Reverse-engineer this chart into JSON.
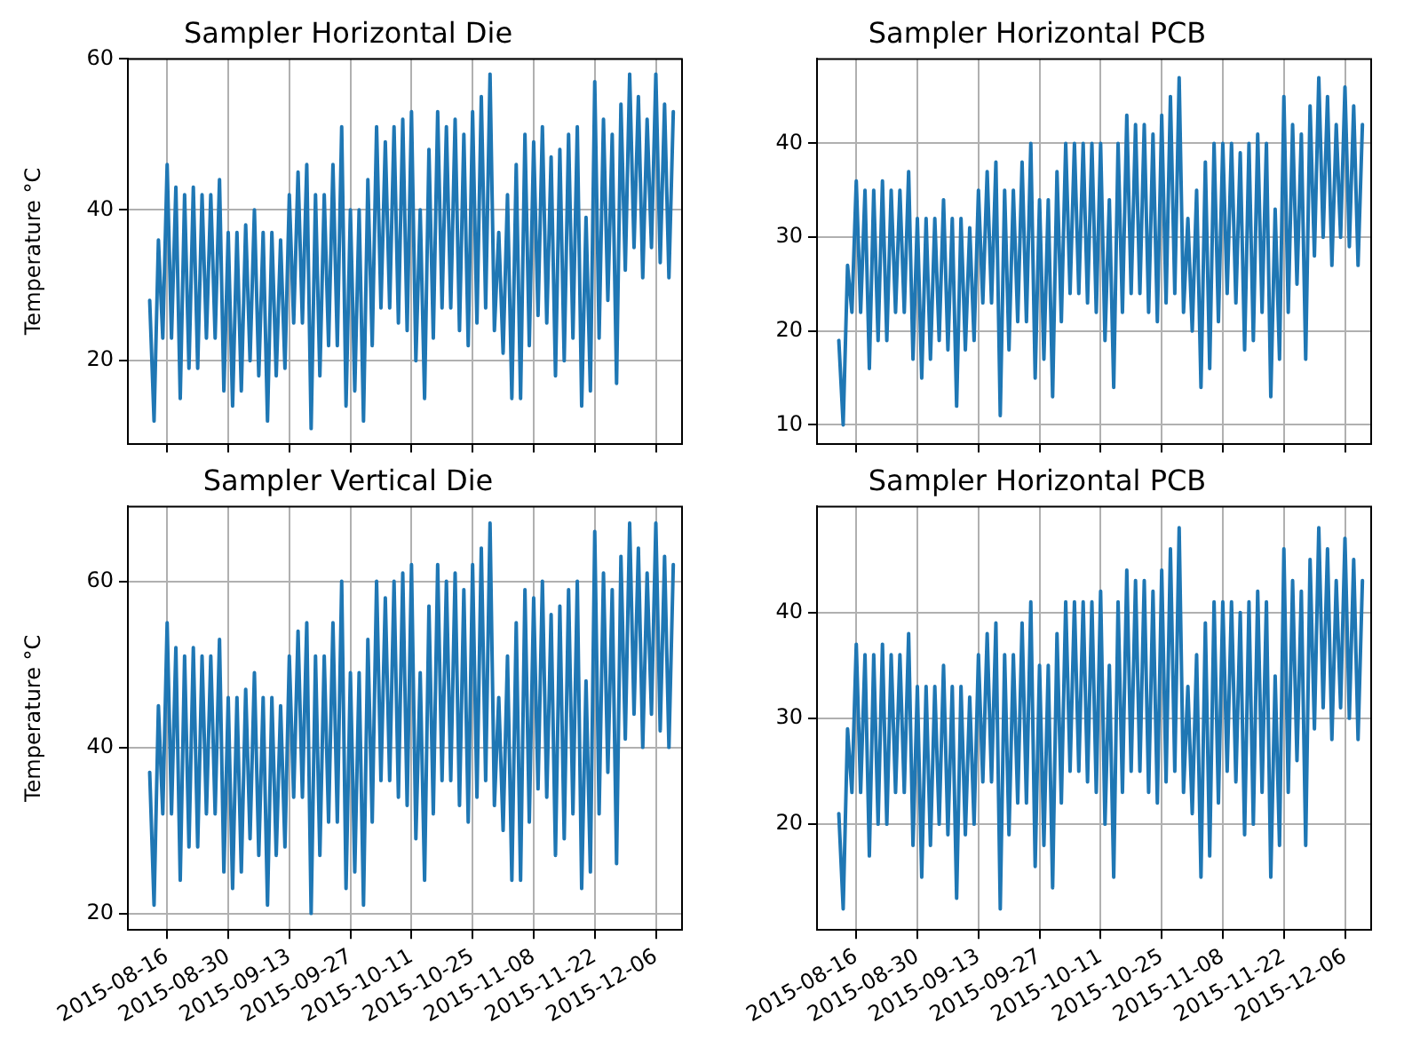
{
  "chart_data": [
    {
      "type": "line",
      "title": "Sampler Horizontal Die",
      "ylabel": "Temperature °C",
      "xlim": [
        "2015-08-07",
        "2015-12-12"
      ],
      "xticks": [
        "2015-08-16",
        "2015-08-30",
        "2015-09-13",
        "2015-09-27",
        "2015-10-11",
        "2015-10-25",
        "2015-11-08",
        "2015-11-22",
        "2015-12-06"
      ],
      "ylim": [
        9,
        60
      ],
      "yticks": [
        20,
        40,
        60
      ],
      "grid": true,
      "tick_labels": "y",
      "marker": "none",
      "line_style": "solid",
      "x": [
        "2015-08-12",
        "2015-08-13",
        "2015-08-14",
        "2015-08-15",
        "2015-08-16",
        "2015-08-17",
        "2015-08-18",
        "2015-08-19",
        "2015-08-20",
        "2015-08-21",
        "2015-08-22",
        "2015-08-23",
        "2015-08-24",
        "2015-08-25",
        "2015-08-26",
        "2015-08-27",
        "2015-08-28",
        "2015-08-29",
        "2015-08-30",
        "2015-08-31",
        "2015-09-01",
        "2015-09-02",
        "2015-09-03",
        "2015-09-04",
        "2015-09-05",
        "2015-09-06",
        "2015-09-07",
        "2015-09-08",
        "2015-09-09",
        "2015-09-10",
        "2015-09-11",
        "2015-09-12",
        "2015-09-13",
        "2015-09-14",
        "2015-09-15",
        "2015-09-16",
        "2015-09-17",
        "2015-09-18",
        "2015-09-19",
        "2015-09-20",
        "2015-09-21",
        "2015-09-22",
        "2015-09-23",
        "2015-09-24",
        "2015-09-25",
        "2015-09-26",
        "2015-09-27",
        "2015-09-28",
        "2015-09-29",
        "2015-09-30",
        "2015-10-01",
        "2015-10-02",
        "2015-10-03",
        "2015-10-04",
        "2015-10-05",
        "2015-10-06",
        "2015-10-07",
        "2015-10-08",
        "2015-10-09",
        "2015-10-10",
        "2015-10-11",
        "2015-10-12",
        "2015-10-13",
        "2015-10-14",
        "2015-10-15",
        "2015-10-16",
        "2015-10-17",
        "2015-10-18",
        "2015-10-19",
        "2015-10-20",
        "2015-10-21",
        "2015-10-22",
        "2015-10-23",
        "2015-10-24",
        "2015-10-25",
        "2015-10-26",
        "2015-10-27",
        "2015-10-28",
        "2015-10-29",
        "2015-10-30",
        "2015-10-31",
        "2015-11-01",
        "2015-11-02",
        "2015-11-03",
        "2015-11-04",
        "2015-11-05",
        "2015-11-06",
        "2015-11-07",
        "2015-11-08",
        "2015-11-09",
        "2015-11-10",
        "2015-11-11",
        "2015-11-12",
        "2015-11-13",
        "2015-11-14",
        "2015-11-15",
        "2015-11-16",
        "2015-11-17",
        "2015-11-18",
        "2015-11-19",
        "2015-11-20",
        "2015-11-21",
        "2015-11-22",
        "2015-11-23",
        "2015-11-24",
        "2015-11-25",
        "2015-11-26",
        "2015-11-27",
        "2015-11-28",
        "2015-11-29",
        "2015-11-30",
        "2015-12-01",
        "2015-12-02",
        "2015-12-03",
        "2015-12-04",
        "2015-12-05",
        "2015-12-06",
        "2015-12-07",
        "2015-12-08",
        "2015-12-09",
        "2015-12-10"
      ],
      "series": [
        {
          "color": "#1f77b4",
          "values": [
            28,
            12,
            36,
            23,
            46,
            23,
            43,
            15,
            42,
            19,
            43,
            19,
            42,
            23,
            42,
            23,
            44,
            16,
            37,
            14,
            37,
            16,
            38,
            20,
            40,
            18,
            37,
            12,
            37,
            18,
            36,
            19,
            42,
            25,
            45,
            25,
            46,
            11,
            42,
            18,
            42,
            22,
            46,
            22,
            51,
            14,
            40,
            16,
            40,
            12,
            44,
            22,
            51,
            27,
            49,
            27,
            51,
            25,
            52,
            24,
            53,
            20,
            40,
            15,
            48,
            23,
            53,
            27,
            51,
            27,
            52,
            24,
            50,
            22,
            53,
            25,
            55,
            27,
            58,
            24,
            37,
            21,
            42,
            15,
            46,
            15,
            50,
            22,
            49,
            26,
            51,
            25,
            47,
            18,
            48,
            20,
            50,
            23,
            51,
            14,
            39,
            16,
            57,
            23,
            52,
            28,
            50,
            17,
            54,
            32,
            58,
            35,
            55,
            31,
            52,
            35,
            58,
            33,
            54,
            31,
            53
          ]
        }
      ]
    },
    {
      "type": "line",
      "title": "Sampler Horizontal PCB",
      "xlim": [
        "2015-08-07",
        "2015-12-12"
      ],
      "xticks": [
        "2015-08-16",
        "2015-08-30",
        "2015-09-13",
        "2015-09-27",
        "2015-10-11",
        "2015-10-25",
        "2015-11-08",
        "2015-11-22",
        "2015-12-06"
      ],
      "ylim": [
        8,
        49
      ],
      "yticks": [
        10,
        20,
        30,
        40
      ],
      "grid": true,
      "tick_labels": "y",
      "marker": "none",
      "line_style": "solid",
      "x": [
        "2015-08-12",
        "2015-08-13",
        "2015-08-14",
        "2015-08-15",
        "2015-08-16",
        "2015-08-17",
        "2015-08-18",
        "2015-08-19",
        "2015-08-20",
        "2015-08-21",
        "2015-08-22",
        "2015-08-23",
        "2015-08-24",
        "2015-08-25",
        "2015-08-26",
        "2015-08-27",
        "2015-08-28",
        "2015-08-29",
        "2015-08-30",
        "2015-08-31",
        "2015-09-01",
        "2015-09-02",
        "2015-09-03",
        "2015-09-04",
        "2015-09-05",
        "2015-09-06",
        "2015-09-07",
        "2015-09-08",
        "2015-09-09",
        "2015-09-10",
        "2015-09-11",
        "2015-09-12",
        "2015-09-13",
        "2015-09-14",
        "2015-09-15",
        "2015-09-16",
        "2015-09-17",
        "2015-09-18",
        "2015-09-19",
        "2015-09-20",
        "2015-09-21",
        "2015-09-22",
        "2015-09-23",
        "2015-09-24",
        "2015-09-25",
        "2015-09-26",
        "2015-09-27",
        "2015-09-28",
        "2015-09-29",
        "2015-09-30",
        "2015-10-01",
        "2015-10-02",
        "2015-10-03",
        "2015-10-04",
        "2015-10-05",
        "2015-10-06",
        "2015-10-07",
        "2015-10-08",
        "2015-10-09",
        "2015-10-10",
        "2015-10-11",
        "2015-10-12",
        "2015-10-13",
        "2015-10-14",
        "2015-10-15",
        "2015-10-16",
        "2015-10-17",
        "2015-10-18",
        "2015-10-19",
        "2015-10-20",
        "2015-10-21",
        "2015-10-22",
        "2015-10-23",
        "2015-10-24",
        "2015-10-25",
        "2015-10-26",
        "2015-10-27",
        "2015-10-28",
        "2015-10-29",
        "2015-10-30",
        "2015-10-31",
        "2015-11-01",
        "2015-11-02",
        "2015-11-03",
        "2015-11-04",
        "2015-11-05",
        "2015-11-06",
        "2015-11-07",
        "2015-11-08",
        "2015-11-09",
        "2015-11-10",
        "2015-11-11",
        "2015-11-12",
        "2015-11-13",
        "2015-11-14",
        "2015-11-15",
        "2015-11-16",
        "2015-11-17",
        "2015-11-18",
        "2015-11-19",
        "2015-11-20",
        "2015-11-21",
        "2015-11-22",
        "2015-11-23",
        "2015-11-24",
        "2015-11-25",
        "2015-11-26",
        "2015-11-27",
        "2015-11-28",
        "2015-11-29",
        "2015-11-30",
        "2015-12-01",
        "2015-12-02",
        "2015-12-03",
        "2015-12-04",
        "2015-12-05",
        "2015-12-06",
        "2015-12-07",
        "2015-12-08",
        "2015-12-09",
        "2015-12-10"
      ],
      "series": [
        {
          "color": "#1f77b4",
          "values": [
            19,
            10,
            27,
            22,
            36,
            22,
            35,
            16,
            35,
            19,
            36,
            19,
            35,
            22,
            35,
            22,
            37,
            17,
            32,
            15,
            32,
            17,
            32,
            19,
            34,
            18,
            32,
            12,
            32,
            18,
            31,
            19,
            35,
            23,
            37,
            23,
            38,
            11,
            35,
            18,
            35,
            21,
            38,
            21,
            40,
            15,
            34,
            17,
            34,
            13,
            37,
            21,
            40,
            24,
            40,
            24,
            40,
            23,
            40,
            22,
            40,
            19,
            34,
            14,
            40,
            22,
            43,
            24,
            42,
            24,
            42,
            22,
            41,
            21,
            43,
            23,
            45,
            24,
            47,
            22,
            32,
            20,
            35,
            14,
            38,
            16,
            40,
            21,
            40,
            24,
            40,
            23,
            39,
            18,
            40,
            19,
            41,
            22,
            40,
            13,
            33,
            17,
            45,
            22,
            42,
            25,
            41,
            17,
            44,
            28,
            47,
            30,
            45,
            27,
            42,
            30,
            46,
            29,
            44,
            27,
            42
          ]
        }
      ]
    },
    {
      "type": "line",
      "title": "Sampler Vertical Die",
      "ylabel": "Temperature °C",
      "xlim": [
        "2015-08-07",
        "2015-12-12"
      ],
      "xticks": [
        "2015-08-16",
        "2015-08-30",
        "2015-09-13",
        "2015-09-27",
        "2015-10-11",
        "2015-10-25",
        "2015-11-08",
        "2015-11-22",
        "2015-12-06"
      ],
      "ylim": [
        18,
        69
      ],
      "yticks": [
        20,
        40,
        60
      ],
      "grid": true,
      "marker": "none",
      "line_style": "solid",
      "x": [
        "2015-08-12",
        "2015-08-13",
        "2015-08-14",
        "2015-08-15",
        "2015-08-16",
        "2015-08-17",
        "2015-08-18",
        "2015-08-19",
        "2015-08-20",
        "2015-08-21",
        "2015-08-22",
        "2015-08-23",
        "2015-08-24",
        "2015-08-25",
        "2015-08-26",
        "2015-08-27",
        "2015-08-28",
        "2015-08-29",
        "2015-08-30",
        "2015-08-31",
        "2015-09-01",
        "2015-09-02",
        "2015-09-03",
        "2015-09-04",
        "2015-09-05",
        "2015-09-06",
        "2015-09-07",
        "2015-09-08",
        "2015-09-09",
        "2015-09-10",
        "2015-09-11",
        "2015-09-12",
        "2015-09-13",
        "2015-09-14",
        "2015-09-15",
        "2015-09-16",
        "2015-09-17",
        "2015-09-18",
        "2015-09-19",
        "2015-09-20",
        "2015-09-21",
        "2015-09-22",
        "2015-09-23",
        "2015-09-24",
        "2015-09-25",
        "2015-09-26",
        "2015-09-27",
        "2015-09-28",
        "2015-09-29",
        "2015-09-30",
        "2015-10-01",
        "2015-10-02",
        "2015-10-03",
        "2015-10-04",
        "2015-10-05",
        "2015-10-06",
        "2015-10-07",
        "2015-10-08",
        "2015-10-09",
        "2015-10-10",
        "2015-10-11",
        "2015-10-12",
        "2015-10-13",
        "2015-10-14",
        "2015-10-15",
        "2015-10-16",
        "2015-10-17",
        "2015-10-18",
        "2015-10-19",
        "2015-10-20",
        "2015-10-21",
        "2015-10-22",
        "2015-10-23",
        "2015-10-24",
        "2015-10-25",
        "2015-10-26",
        "2015-10-27",
        "2015-10-28",
        "2015-10-29",
        "2015-10-30",
        "2015-10-31",
        "2015-11-01",
        "2015-11-02",
        "2015-11-03",
        "2015-11-04",
        "2015-11-05",
        "2015-11-06",
        "2015-11-07",
        "2015-11-08",
        "2015-11-09",
        "2015-11-10",
        "2015-11-11",
        "2015-11-12",
        "2015-11-13",
        "2015-11-14",
        "2015-11-15",
        "2015-11-16",
        "2015-11-17",
        "2015-11-18",
        "2015-11-19",
        "2015-11-20",
        "2015-11-21",
        "2015-11-22",
        "2015-11-23",
        "2015-11-24",
        "2015-11-25",
        "2015-11-26",
        "2015-11-27",
        "2015-11-28",
        "2015-11-29",
        "2015-11-30",
        "2015-12-01",
        "2015-12-02",
        "2015-12-03",
        "2015-12-04",
        "2015-12-05",
        "2015-12-06",
        "2015-12-07",
        "2015-12-08",
        "2015-12-09",
        "2015-12-10"
      ],
      "series": [
        {
          "color": "#1f77b4",
          "values": [
            37,
            21,
            45,
            32,
            55,
            32,
            52,
            24,
            51,
            28,
            52,
            28,
            51,
            32,
            51,
            32,
            53,
            25,
            46,
            23,
            46,
            25,
            47,
            29,
            49,
            27,
            46,
            21,
            46,
            27,
            45,
            28,
            51,
            34,
            54,
            34,
            55,
            20,
            51,
            27,
            51,
            31,
            55,
            31,
            60,
            23,
            49,
            25,
            49,
            21,
            53,
            31,
            60,
            36,
            58,
            36,
            60,
            34,
            61,
            33,
            62,
            29,
            49,
            24,
            57,
            32,
            62,
            36,
            60,
            36,
            61,
            33,
            59,
            31,
            62,
            34,
            64,
            36,
            67,
            33,
            46,
            30,
            51,
            24,
            55,
            24,
            59,
            31,
            58,
            35,
            60,
            34,
            56,
            27,
            57,
            29,
            59,
            32,
            60,
            23,
            48,
            25,
            66,
            32,
            61,
            37,
            59,
            26,
            63,
            41,
            67,
            44,
            64,
            40,
            61,
            44,
            67,
            42,
            63,
            40,
            62
          ]
        }
      ]
    },
    {
      "type": "line",
      "title": "Sampler Horizontal PCB",
      "xlim": [
        "2015-08-07",
        "2015-12-12"
      ],
      "xticks": [
        "2015-08-16",
        "2015-08-30",
        "2015-09-13",
        "2015-09-27",
        "2015-10-11",
        "2015-10-25",
        "2015-11-08",
        "2015-11-22",
        "2015-12-06"
      ],
      "ylim": [
        10,
        50
      ],
      "yticks": [
        20,
        30,
        40
      ],
      "grid": true,
      "marker": "none",
      "line_style": "solid",
      "x": [
        "2015-08-12",
        "2015-08-13",
        "2015-08-14",
        "2015-08-15",
        "2015-08-16",
        "2015-08-17",
        "2015-08-18",
        "2015-08-19",
        "2015-08-20",
        "2015-08-21",
        "2015-08-22",
        "2015-08-23",
        "2015-08-24",
        "2015-08-25",
        "2015-08-26",
        "2015-08-27",
        "2015-08-28",
        "2015-08-29",
        "2015-08-30",
        "2015-08-31",
        "2015-09-01",
        "2015-09-02",
        "2015-09-03",
        "2015-09-04",
        "2015-09-05",
        "2015-09-06",
        "2015-09-07",
        "2015-09-08",
        "2015-09-09",
        "2015-09-10",
        "2015-09-11",
        "2015-09-12",
        "2015-09-13",
        "2015-09-14",
        "2015-09-15",
        "2015-09-16",
        "2015-09-17",
        "2015-09-18",
        "2015-09-19",
        "2015-09-20",
        "2015-09-21",
        "2015-09-22",
        "2015-09-23",
        "2015-09-24",
        "2015-09-25",
        "2015-09-26",
        "2015-09-27",
        "2015-09-28",
        "2015-09-29",
        "2015-09-30",
        "2015-10-01",
        "2015-10-02",
        "2015-10-03",
        "2015-10-04",
        "2015-10-05",
        "2015-10-06",
        "2015-10-07",
        "2015-10-08",
        "2015-10-09",
        "2015-10-10",
        "2015-10-11",
        "2015-10-12",
        "2015-10-13",
        "2015-10-14",
        "2015-10-15",
        "2015-10-16",
        "2015-10-17",
        "2015-10-18",
        "2015-10-19",
        "2015-10-20",
        "2015-10-21",
        "2015-10-22",
        "2015-10-23",
        "2015-10-24",
        "2015-10-25",
        "2015-10-26",
        "2015-10-27",
        "2015-10-28",
        "2015-10-29",
        "2015-10-30",
        "2015-10-31",
        "2015-11-01",
        "2015-11-02",
        "2015-11-03",
        "2015-11-04",
        "2015-11-05",
        "2015-11-06",
        "2015-11-07",
        "2015-11-08",
        "2015-11-09",
        "2015-11-10",
        "2015-11-11",
        "2015-11-12",
        "2015-11-13",
        "2015-11-14",
        "2015-11-15",
        "2015-11-16",
        "2015-11-17",
        "2015-11-18",
        "2015-11-19",
        "2015-11-20",
        "2015-11-21",
        "2015-11-22",
        "2015-11-23",
        "2015-11-24",
        "2015-11-25",
        "2015-11-26",
        "2015-11-27",
        "2015-11-28",
        "2015-11-29",
        "2015-11-30",
        "2015-12-01",
        "2015-12-02",
        "2015-12-03",
        "2015-12-04",
        "2015-12-05",
        "2015-12-06",
        "2015-12-07",
        "2015-12-08",
        "2015-12-09",
        "2015-12-10"
      ],
      "series": [
        {
          "color": "#1f77b4",
          "values": [
            21,
            12,
            29,
            23,
            37,
            23,
            36,
            17,
            36,
            20,
            37,
            20,
            36,
            23,
            36,
            23,
            38,
            18,
            33,
            15,
            33,
            18,
            33,
            20,
            35,
            19,
            33,
            13,
            33,
            19,
            32,
            20,
            36,
            24,
            38,
            24,
            39,
            12,
            36,
            19,
            36,
            22,
            39,
            22,
            41,
            16,
            35,
            18,
            35,
            14,
            38,
            22,
            41,
            25,
            41,
            25,
            41,
            24,
            41,
            23,
            42,
            20,
            35,
            15,
            41,
            23,
            44,
            25,
            43,
            25,
            43,
            23,
            42,
            22,
            44,
            24,
            46,
            25,
            48,
            23,
            33,
            21,
            36,
            15,
            39,
            17,
            41,
            22,
            41,
            25,
            41,
            24,
            40,
            19,
            41,
            20,
            42,
            23,
            41,
            15,
            34,
            18,
            46,
            23,
            43,
            26,
            42,
            18,
            45,
            29,
            48,
            31,
            46,
            28,
            43,
            31,
            47,
            30,
            45,
            28,
            43
          ]
        }
      ]
    }
  ]
}
